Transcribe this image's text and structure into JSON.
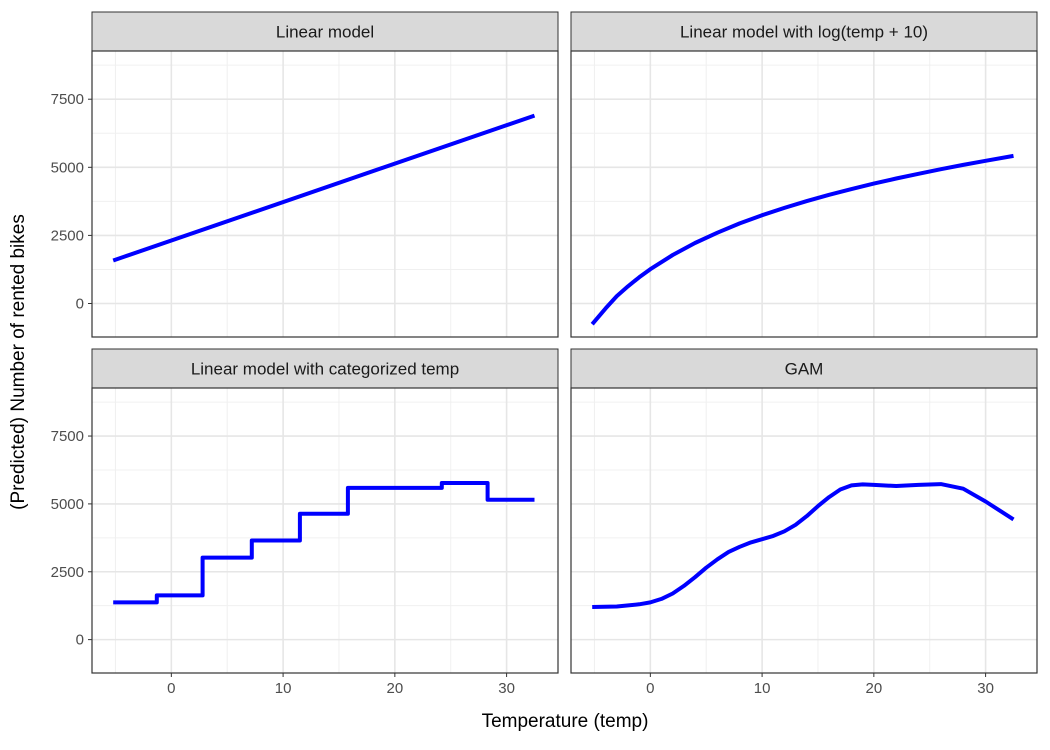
{
  "chart_data": {
    "type": "line",
    "xlabel": "Temperature (temp)",
    "ylabel": "(Predicted) Number of rented bikes",
    "xlim": [
      -7.1,
      34.6
    ],
    "ylim": [
      -1230,
      9270
    ],
    "xticks": [
      0,
      10,
      20,
      30
    ],
    "yticks": [
      0,
      2500,
      5000,
      7500
    ],
    "grid": true,
    "line_color": "#0000ff",
    "panels": [
      {
        "title": "Linear model",
        "x": [
          -5.2,
          32.5
        ],
        "y": [
          1580,
          6900
        ]
      },
      {
        "title": "Linear model with log(temp + 10)",
        "x": [
          -5.2,
          -4,
          -3,
          -2,
          -1,
          0,
          2,
          4,
          6,
          8,
          10,
          12,
          14,
          16,
          18,
          20,
          22,
          24,
          26,
          28,
          30,
          32.5
        ],
        "y": [
          -760,
          -180,
          270,
          630,
          960,
          1260,
          1780,
          2220,
          2600,
          2940,
          3240,
          3510,
          3760,
          3990,
          4200,
          4400,
          4590,
          4760,
          4930,
          5090,
          5240,
          5420
        ]
      },
      {
        "title": "Linear model with categorized temp",
        "x": [
          -5.2,
          -1.3,
          -1.3,
          2.8,
          2.8,
          7.2,
          7.2,
          11.5,
          11.5,
          15.8,
          15.8,
          24.2,
          24.2,
          28.3,
          28.3,
          32.5
        ],
        "y": [
          1370,
          1370,
          1630,
          1630,
          3020,
          3020,
          3650,
          3650,
          4640,
          4640,
          5590,
          5590,
          5770,
          5770,
          5150,
          5150
        ]
      },
      {
        "title": "GAM",
        "x": [
          -5.2,
          -3,
          -1,
          0,
          1,
          2,
          3,
          4,
          5,
          6,
          7,
          8,
          9,
          10,
          11,
          12,
          13,
          14,
          15,
          16,
          17,
          18,
          19,
          20,
          22,
          24,
          26,
          28,
          30,
          32.5
        ],
        "y": [
          1200,
          1220,
          1300,
          1370,
          1500,
          1700,
          1980,
          2300,
          2650,
          2960,
          3230,
          3420,
          3580,
          3700,
          3820,
          3990,
          4230,
          4550,
          4920,
          5250,
          5530,
          5680,
          5720,
          5700,
          5660,
          5700,
          5730,
          5560,
          5090,
          4430
        ]
      }
    ]
  }
}
